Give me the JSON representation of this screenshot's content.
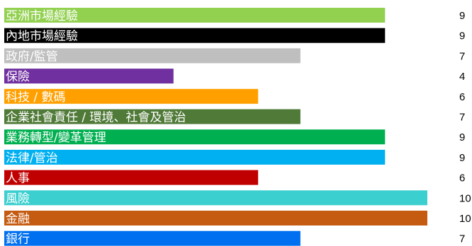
{
  "chart_data": {
    "type": "bar",
    "orientation": "horizontal",
    "title": "",
    "xlabel": "",
    "ylabel": "",
    "xlim": [
      0,
      10
    ],
    "grid": false,
    "legend": "none",
    "categories": [
      "亞洲市場經驗",
      "內地市場經驗",
      "政府/監管",
      "保險",
      "科技 / 數碼",
      "企業社會責任 / 環境、社會及管治",
      "業務轉型/變革管理",
      "法律/管治",
      "人事",
      "風險",
      "金融",
      "銀行"
    ],
    "values": [
      9,
      9,
      7,
      4,
      6,
      7,
      9,
      9,
      6,
      10,
      10,
      7
    ],
    "value_labels": [
      "9",
      "9",
      "7",
      "4",
      "6",
      "7",
      "9",
      "9",
      "6",
      "10",
      "10",
      "7"
    ],
    "colors": [
      "#92D050",
      "#000000",
      "#BFBFBF",
      "#7030A0",
      "#FFA000",
      "#507A38",
      "#00B050",
      "#00B0F0",
      "#C00000",
      "#3CCFCF",
      "#C55A11",
      "#0070F0"
    ]
  }
}
